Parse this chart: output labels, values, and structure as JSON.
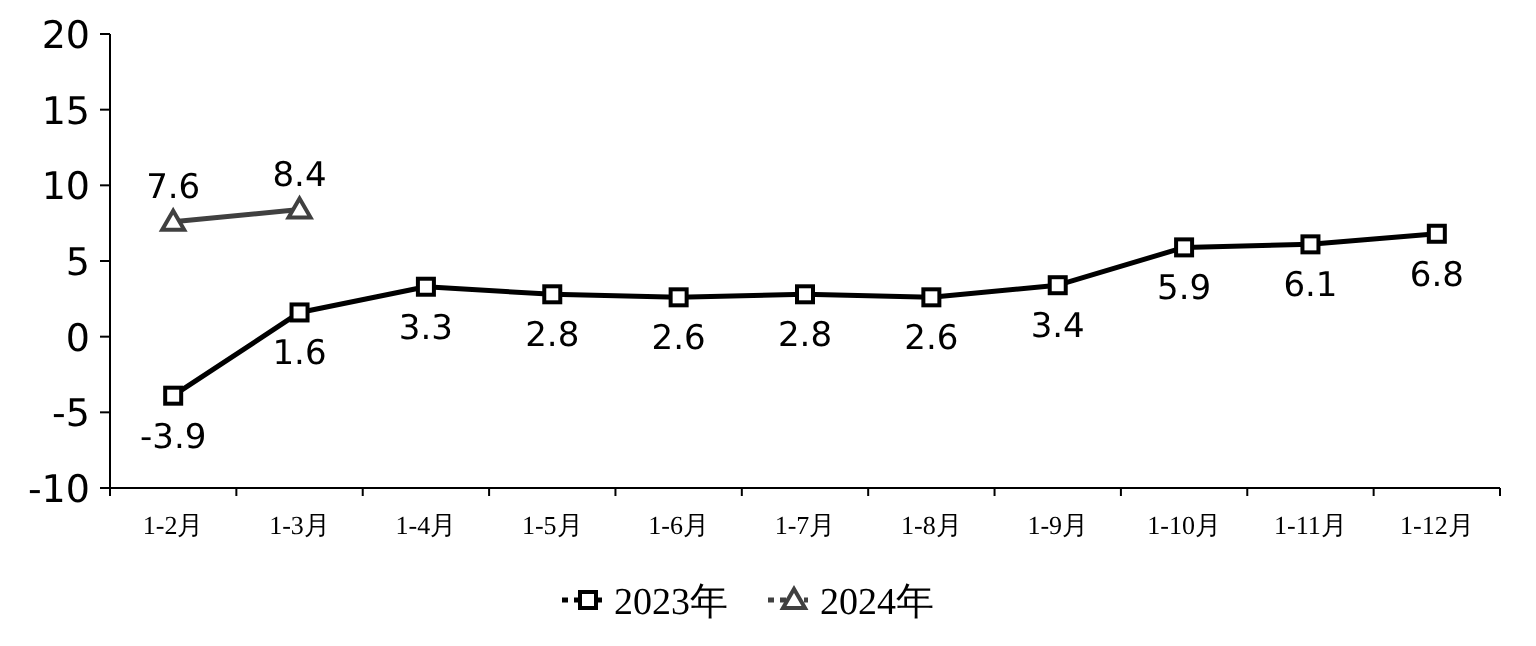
{
  "chart_data": {
    "type": "line",
    "categories": [
      "1-2月",
      "1-3月",
      "1-4月",
      "1-5月",
      "1-6月",
      "1-7月",
      "1-8月",
      "1-9月",
      "1-10月",
      "1-11月",
      "1-12月"
    ],
    "series": [
      {
        "name": "2023年",
        "color": "#000000",
        "marker": "square",
        "values": [
          -3.9,
          1.6,
          3.3,
          2.8,
          2.6,
          2.8,
          2.6,
          3.4,
          5.9,
          6.1,
          6.8
        ]
      },
      {
        "name": "2024年",
        "color": "#404040",
        "marker": "triangle",
        "values": [
          7.6,
          8.4,
          null,
          null,
          null,
          null,
          null,
          null,
          null,
          null,
          null
        ]
      }
    ],
    "ylim": [
      -10,
      20
    ],
    "yticks": [
      -10,
      -5,
      0,
      5,
      10,
      15,
      20
    ],
    "data_labels": true,
    "legend": "bottom",
    "grid": false,
    "line_style": "solid"
  }
}
